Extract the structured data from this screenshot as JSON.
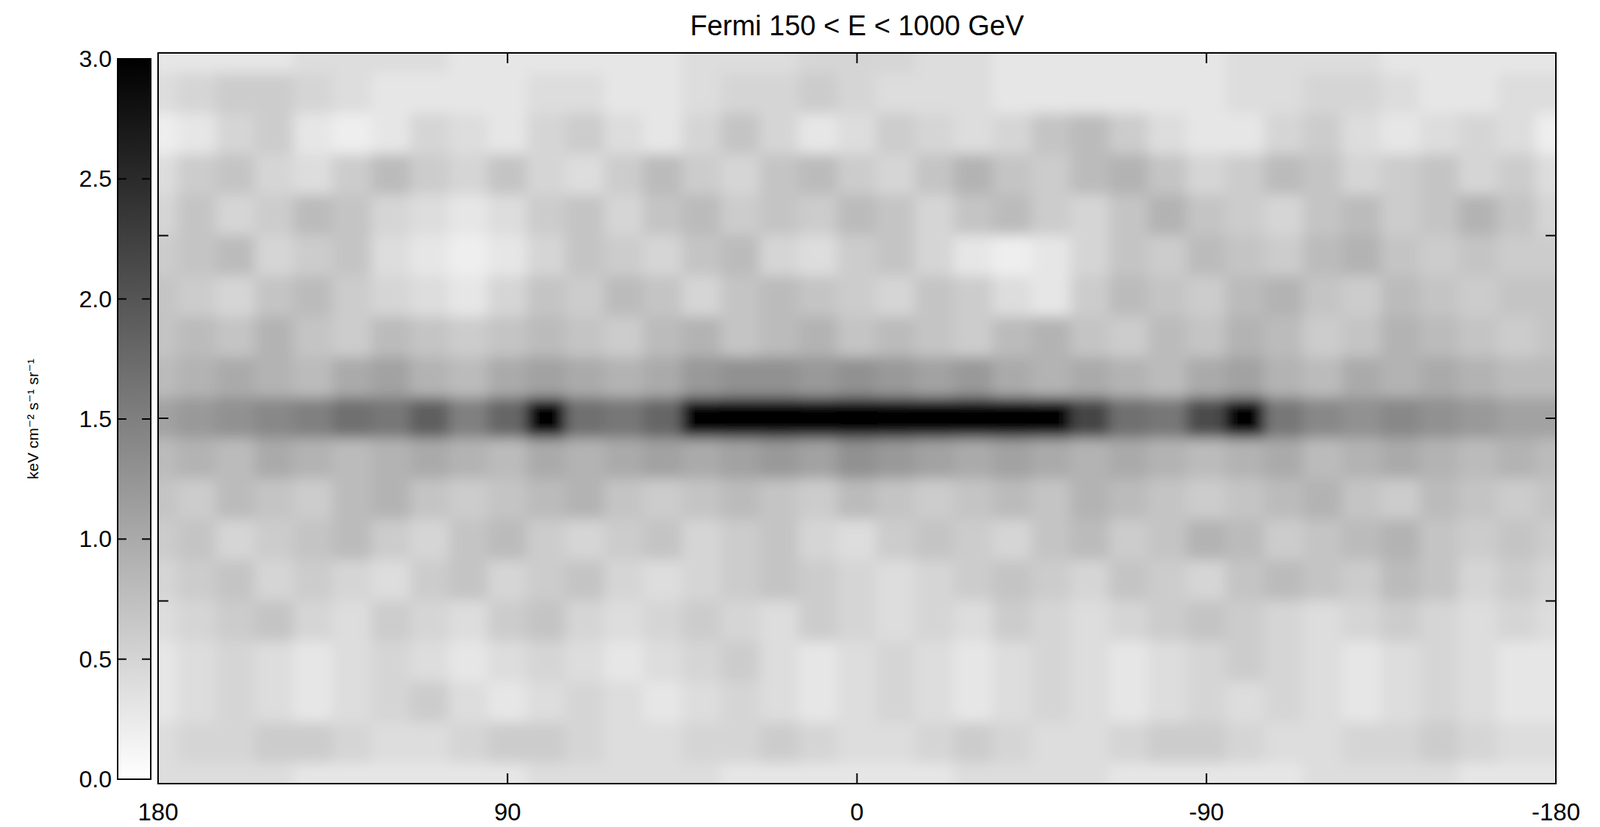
{
  "chart_data": {
    "type": "heatmap",
    "title": "Fermi 150 < E < 1000 GeV",
    "x": [
      180,
      170,
      160,
      150,
      140,
      130,
      120,
      110,
      100,
      90,
      80,
      70,
      60,
      50,
      40,
      30,
      20,
      10,
      0,
      -10,
      -20,
      -30,
      -40,
      -50,
      -60,
      -70,
      -80,
      -90,
      -100,
      -110,
      -120,
      -130,
      -140,
      -150,
      -160,
      -170,
      -180
    ],
    "y": [
      90,
      80,
      70,
      60,
      50,
      40,
      30,
      20,
      10,
      0,
      -10,
      -20,
      -30,
      -40,
      -50,
      -60,
      -70,
      -80,
      -90
    ],
    "values": [
      [
        0.3,
        0.3,
        0.3,
        0.3,
        0.4,
        0.4,
        0.4,
        0.4,
        0.3,
        0.3,
        0.3,
        0.3,
        0.3,
        0.3,
        0.4,
        0.4,
        0.4,
        0.5,
        0.5,
        0.5,
        0.4,
        0.4,
        0.3,
        0.3,
        0.3,
        0.3,
        0.3,
        0.3,
        0.4,
        0.4,
        0.4,
        0.4,
        0.3,
        0.3,
        0.3,
        0.3,
        0.3
      ],
      [
        0.4,
        0.5,
        0.6,
        0.6,
        0.5,
        0.4,
        0.3,
        0.3,
        0.3,
        0.3,
        0.4,
        0.4,
        0.3,
        0.3,
        0.4,
        0.5,
        0.5,
        0.6,
        0.5,
        0.4,
        0.4,
        0.4,
        0.3,
        0.3,
        0.3,
        0.3,
        0.3,
        0.3,
        0.4,
        0.4,
        0.5,
        0.5,
        0.4,
        0.3,
        0.3,
        0.4,
        0.4
      ],
      [
        0.2,
        0.3,
        0.5,
        0.6,
        0.3,
        0.2,
        0.3,
        0.5,
        0.4,
        0.3,
        0.5,
        0.6,
        0.4,
        0.3,
        0.5,
        0.7,
        0.5,
        0.3,
        0.4,
        0.6,
        0.5,
        0.4,
        0.5,
        0.7,
        0.8,
        0.6,
        0.4,
        0.3,
        0.3,
        0.5,
        0.6,
        0.4,
        0.3,
        0.4,
        0.5,
        0.4,
        0.2
      ],
      [
        0.4,
        0.6,
        0.7,
        0.5,
        0.4,
        0.6,
        0.8,
        0.6,
        0.5,
        0.7,
        0.5,
        0.4,
        0.6,
        0.8,
        0.6,
        0.5,
        0.7,
        0.8,
        0.6,
        0.5,
        0.7,
        0.9,
        0.7,
        0.6,
        0.8,
        0.9,
        0.7,
        0.5,
        0.6,
        0.8,
        0.7,
        0.5,
        0.6,
        0.7,
        0.5,
        0.6,
        0.4
      ],
      [
        0.5,
        0.7,
        0.5,
        0.6,
        0.8,
        0.7,
        0.5,
        0.4,
        0.3,
        0.4,
        0.6,
        0.7,
        0.5,
        0.7,
        0.8,
        0.6,
        0.7,
        0.6,
        0.8,
        0.7,
        0.5,
        0.7,
        0.8,
        0.6,
        0.5,
        0.7,
        0.9,
        0.7,
        0.6,
        0.5,
        0.7,
        0.8,
        0.6,
        0.7,
        0.9,
        0.7,
        0.5
      ],
      [
        0.6,
        0.7,
        0.8,
        0.5,
        0.6,
        0.7,
        0.4,
        0.3,
        0.2,
        0.3,
        0.5,
        0.7,
        0.6,
        0.5,
        0.7,
        0.8,
        0.5,
        0.4,
        0.6,
        0.7,
        0.5,
        0.3,
        0.2,
        0.3,
        0.5,
        0.7,
        0.6,
        0.8,
        0.7,
        0.6,
        0.8,
        0.9,
        0.7,
        0.6,
        0.7,
        0.6,
        0.6
      ],
      [
        0.7,
        0.6,
        0.5,
        0.7,
        0.8,
        0.6,
        0.5,
        0.4,
        0.3,
        0.5,
        0.7,
        0.6,
        0.8,
        0.7,
        0.5,
        0.7,
        0.8,
        0.7,
        0.6,
        0.5,
        0.7,
        0.6,
        0.4,
        0.3,
        0.6,
        0.8,
        0.7,
        0.6,
        0.8,
        0.9,
        0.7,
        0.6,
        0.8,
        0.7,
        0.6,
        0.7,
        0.7
      ],
      [
        0.7,
        0.8,
        0.7,
        0.9,
        0.7,
        0.6,
        0.8,
        0.7,
        0.6,
        0.7,
        0.8,
        0.7,
        0.6,
        0.8,
        0.9,
        0.7,
        0.8,
        0.9,
        0.7,
        0.8,
        0.7,
        0.6,
        0.8,
        0.9,
        0.7,
        0.6,
        0.8,
        0.7,
        0.9,
        0.8,
        0.6,
        0.7,
        0.9,
        0.8,
        0.7,
        0.6,
        0.7
      ],
      [
        0.8,
        0.9,
        1.0,
        0.9,
        0.8,
        1.0,
        1.1,
        0.9,
        0.8,
        1.0,
        1.1,
        1.0,
        0.9,
        1.0,
        1.2,
        1.3,
        1.3,
        1.2,
        1.3,
        1.2,
        1.1,
        1.2,
        1.0,
        0.9,
        1.0,
        0.9,
        0.8,
        1.0,
        1.1,
        0.9,
        0.8,
        1.0,
        0.9,
        1.0,
        0.9,
        0.8,
        0.8
      ],
      [
        1.1,
        1.2,
        1.3,
        1.4,
        1.5,
        1.7,
        1.6,
        1.9,
        1.5,
        1.8,
        3.0,
        1.7,
        1.6,
        1.8,
        3.0,
        3.0,
        3.0,
        3.0,
        3.0,
        3.0,
        3.0,
        3.0,
        3.0,
        3.0,
        2.2,
        1.7,
        1.6,
        2.1,
        3.0,
        1.6,
        1.4,
        1.3,
        1.4,
        1.3,
        1.2,
        1.1,
        1.1
      ],
      [
        0.8,
        0.9,
        0.8,
        1.0,
        0.9,
        0.8,
        0.9,
        1.0,
        0.9,
        0.8,
        1.0,
        0.9,
        1.0,
        1.1,
        1.0,
        1.1,
        1.2,
        1.1,
        1.3,
        1.2,
        1.1,
        1.0,
        1.1,
        1.0,
        0.9,
        1.0,
        0.9,
        0.8,
        0.9,
        1.0,
        0.8,
        0.9,
        1.0,
        0.9,
        0.8,
        0.9,
        0.8
      ],
      [
        0.7,
        0.6,
        0.8,
        0.7,
        0.6,
        0.8,
        0.9,
        0.7,
        0.6,
        0.7,
        0.8,
        0.9,
        0.7,
        0.6,
        0.7,
        0.8,
        0.7,
        0.6,
        0.8,
        0.7,
        0.6,
        0.7,
        0.8,
        0.7,
        0.9,
        0.8,
        0.7,
        0.6,
        0.7,
        0.8,
        0.9,
        0.7,
        0.6,
        0.8,
        0.7,
        0.6,
        0.7
      ],
      [
        0.6,
        0.7,
        0.5,
        0.6,
        0.7,
        0.8,
        0.6,
        0.5,
        0.7,
        0.8,
        0.6,
        0.5,
        0.6,
        0.7,
        0.5,
        0.6,
        0.7,
        0.5,
        0.4,
        0.6,
        0.7,
        0.6,
        0.5,
        0.7,
        0.8,
        0.6,
        0.7,
        0.9,
        0.8,
        0.6,
        0.7,
        0.8,
        0.9,
        0.7,
        0.6,
        0.7,
        0.6
      ],
      [
        0.5,
        0.6,
        0.7,
        0.5,
        0.6,
        0.5,
        0.4,
        0.6,
        0.7,
        0.5,
        0.6,
        0.7,
        0.5,
        0.4,
        0.5,
        0.6,
        0.7,
        0.6,
        0.5,
        0.4,
        0.5,
        0.6,
        0.7,
        0.6,
        0.5,
        0.7,
        0.6,
        0.5,
        0.7,
        0.8,
        0.7,
        0.6,
        0.8,
        0.7,
        0.5,
        0.6,
        0.5
      ],
      [
        0.4,
        0.5,
        0.6,
        0.7,
        0.5,
        0.4,
        0.6,
        0.5,
        0.4,
        0.6,
        0.7,
        0.5,
        0.4,
        0.5,
        0.6,
        0.5,
        0.4,
        0.6,
        0.5,
        0.4,
        0.5,
        0.4,
        0.6,
        0.5,
        0.4,
        0.5,
        0.6,
        0.7,
        0.6,
        0.5,
        0.4,
        0.5,
        0.6,
        0.5,
        0.4,
        0.5,
        0.4
      ],
      [
        0.3,
        0.4,
        0.5,
        0.4,
        0.3,
        0.4,
        0.5,
        0.4,
        0.3,
        0.4,
        0.5,
        0.4,
        0.3,
        0.4,
        0.5,
        0.6,
        0.4,
        0.3,
        0.4,
        0.5,
        0.4,
        0.3,
        0.4,
        0.5,
        0.4,
        0.3,
        0.4,
        0.5,
        0.6,
        0.5,
        0.4,
        0.3,
        0.4,
        0.5,
        0.4,
        0.3,
        0.3
      ],
      [
        0.3,
        0.4,
        0.5,
        0.4,
        0.3,
        0.4,
        0.5,
        0.6,
        0.4,
        0.3,
        0.4,
        0.5,
        0.4,
        0.3,
        0.4,
        0.5,
        0.4,
        0.3,
        0.4,
        0.5,
        0.4,
        0.3,
        0.4,
        0.5,
        0.4,
        0.3,
        0.4,
        0.5,
        0.4,
        0.5,
        0.4,
        0.3,
        0.4,
        0.5,
        0.4,
        0.3,
        0.3
      ],
      [
        0.4,
        0.5,
        0.5,
        0.6,
        0.6,
        0.5,
        0.4,
        0.4,
        0.5,
        0.6,
        0.6,
        0.5,
        0.4,
        0.4,
        0.5,
        0.5,
        0.6,
        0.5,
        0.4,
        0.4,
        0.5,
        0.6,
        0.5,
        0.4,
        0.4,
        0.5,
        0.6,
        0.6,
        0.5,
        0.4,
        0.4,
        0.5,
        0.5,
        0.6,
        0.5,
        0.4,
        0.4
      ],
      [
        0.4,
        0.4,
        0.4,
        0.4,
        0.3,
        0.3,
        0.3,
        0.3,
        0.3,
        0.3,
        0.4,
        0.4,
        0.4,
        0.4,
        0.4,
        0.3,
        0.3,
        0.3,
        0.3,
        0.3,
        0.3,
        0.4,
        0.4,
        0.4,
        0.4,
        0.3,
        0.3,
        0.3,
        0.3,
        0.3,
        0.4,
        0.4,
        0.4,
        0.4,
        0.3,
        0.3,
        0.3
      ]
    ],
    "xlim": [
      180,
      -180
    ],
    "xticks": [
      180,
      90,
      0,
      -90,
      -180
    ],
    "ylim": [
      -90,
      90
    ],
    "yticks": [
      -45,
      0,
      45
    ],
    "tick_labels": "x",
    "colorbar": {
      "label": "keV cm⁻² s⁻¹ sr⁻¹",
      "range": [
        0,
        3
      ],
      "ticks": [
        {
          "value": 0,
          "label": "0.0"
        },
        0.5,
        {
          "value": 1,
          "label": "1.0"
        },
        1.5,
        {
          "value": 2,
          "label": "2.0"
        },
        2.5,
        {
          "value": 3,
          "label": "3.0"
        }
      ]
    }
  }
}
